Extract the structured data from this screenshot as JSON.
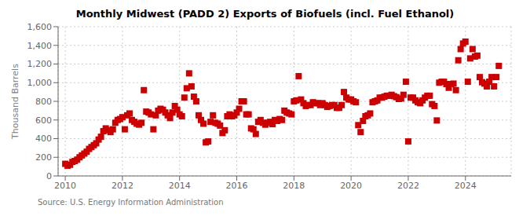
{
  "chart_data": {
    "type": "scatter",
    "title": "Monthly Midwest (PADD 2) Exports of Biofuels (incl. Fuel Ethanol)",
    "ylabel": "Thousand Barrels",
    "source": "Source: U.S. Energy Information Administration",
    "color": "#cc0000",
    "marker": "square",
    "grid": true,
    "xlim": [
      2009.75,
      2025.6
    ],
    "xticks": [
      2010,
      2012,
      2014,
      2016,
      2018,
      2020,
      2022,
      2024
    ],
    "ylim": [
      0,
      1600
    ],
    "yticks": [
      0,
      200,
      400,
      600,
      800,
      {
        "value": 1000,
        "label": "1,000"
      },
      {
        "value": 1200,
        "label": "1,200"
      },
      {
        "value": 1400,
        "label": "1,400"
      },
      {
        "value": 1600,
        "label": "1,600"
      }
    ],
    "x": [
      2010.0,
      2010.083,
      2010.167,
      2010.25,
      2010.333,
      2010.417,
      2010.5,
      2010.583,
      2010.667,
      2010.75,
      2010.833,
      2010.917,
      2011.0,
      2011.083,
      2011.167,
      2011.25,
      2011.333,
      2011.417,
      2011.5,
      2011.583,
      2011.667,
      2011.75,
      2011.833,
      2011.917,
      2012.0,
      2012.083,
      2012.167,
      2012.25,
      2012.333,
      2012.417,
      2012.5,
      2012.583,
      2012.667,
      2012.75,
      2012.833,
      2012.917,
      2013.0,
      2013.083,
      2013.167,
      2013.25,
      2013.333,
      2013.417,
      2013.5,
      2013.583,
      2013.667,
      2013.75,
      2013.833,
      2013.917,
      2014.0,
      2014.083,
      2014.167,
      2014.25,
      2014.333,
      2014.417,
      2014.5,
      2014.583,
      2014.667,
      2014.75,
      2014.833,
      2014.917,
      2015.0,
      2015.083,
      2015.167,
      2015.25,
      2015.333,
      2015.417,
      2015.5,
      2015.583,
      2015.667,
      2015.75,
      2015.833,
      2015.917,
      2016.0,
      2016.083,
      2016.167,
      2016.25,
      2016.333,
      2016.417,
      2016.5,
      2016.583,
      2016.667,
      2016.75,
      2016.833,
      2016.917,
      2017.0,
      2017.083,
      2017.167,
      2017.25,
      2017.333,
      2017.417,
      2017.5,
      2017.583,
      2017.667,
      2017.75,
      2017.833,
      2017.917,
      2018.0,
      2018.083,
      2018.167,
      2018.25,
      2018.333,
      2018.417,
      2018.5,
      2018.583,
      2018.667,
      2018.75,
      2018.833,
      2018.917,
      2019.0,
      2019.083,
      2019.167,
      2019.25,
      2019.333,
      2019.417,
      2019.5,
      2019.583,
      2019.667,
      2019.75,
      2019.833,
      2019.917,
      2020.0,
      2020.083,
      2020.167,
      2020.25,
      2020.333,
      2020.417,
      2020.5,
      2020.583,
      2020.667,
      2020.75,
      2020.833,
      2020.917,
      2021.0,
      2021.083,
      2021.167,
      2021.25,
      2021.333,
      2021.417,
      2021.5,
      2021.583,
      2021.667,
      2021.75,
      2021.833,
      2021.917,
      2022.0,
      2022.083,
      2022.167,
      2022.25,
      2022.333,
      2022.417,
      2022.5,
      2022.583,
      2022.667,
      2022.75,
      2022.833,
      2022.917,
      2023.0,
      2023.083,
      2023.167,
      2023.25,
      2023.333,
      2023.417,
      2023.5,
      2023.583,
      2023.667,
      2023.75,
      2023.833,
      2023.917,
      2024.0,
      2024.083,
      2024.167,
      2024.25,
      2024.333,
      2024.417,
      2024.5,
      2024.583,
      2024.667,
      2024.75,
      2024.833,
      2024.917,
      2025.0,
      2025.083,
      2025.167
    ],
    "values": [
      130,
      110,
      120,
      150,
      160,
      175,
      200,
      220,
      240,
      260,
      290,
      310,
      330,
      350,
      390,
      420,
      480,
      510,
      490,
      470,
      500,
      570,
      600,
      610,
      630,
      500,
      650,
      670,
      600,
      580,
      560,
      550,
      570,
      920,
      690,
      680,
      660,
      500,
      650,
      700,
      720,
      710,
      680,
      650,
      620,
      680,
      750,
      710,
      660,
      640,
      840,
      940,
      1100,
      960,
      850,
      800,
      650,
      600,
      560,
      360,
      370,
      580,
      650,
      570,
      560,
      540,
      460,
      490,
      640,
      660,
      640,
      650,
      680,
      720,
      800,
      800,
      660,
      660,
      510,
      500,
      450,
      580,
      600,
      570,
      550,
      570,
      580,
      555,
      600,
      590,
      610,
      600,
      700,
      680,
      670,
      660,
      800,
      810,
      1070,
      820,
      780,
      750,
      760,
      760,
      790,
      780,
      780,
      760,
      780,
      760,
      740,
      750,
      760,
      760,
      730,
      730,
      760,
      900,
      840,
      820,
      820,
      800,
      790,
      545,
      470,
      590,
      640,
      650,
      670,
      790,
      800,
      810,
      840,
      840,
      850,
      860,
      860,
      870,
      855,
      845,
      825,
      830,
      870,
      1010,
      370,
      840,
      840,
      810,
      790,
      780,
      810,
      840,
      860,
      860,
      770,
      750,
      595,
      1000,
      1010,
      1010,
      985,
      945,
      985,
      990,
      920,
      1240,
      1360,
      1420,
      1440,
      1010,
      1260,
      1360,
      1280,
      1290,
      1060,
      1005,
      990,
      960,
      1010,
      1060,
      960,
      1060,
      1180
    ]
  }
}
